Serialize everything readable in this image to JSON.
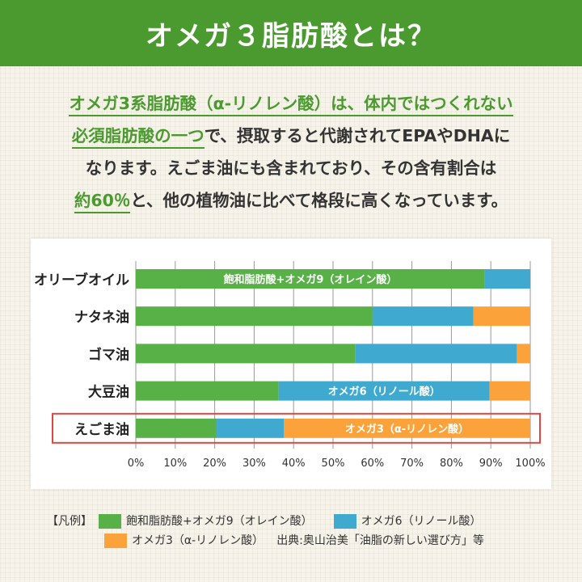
{
  "header": {
    "title": "オメガ３脂肪酸とは？"
  },
  "intro": {
    "l1_hl": "オメガ3系脂肪酸（α-リノレン酸）は、体内ではつくれない",
    "l2_hl": "必須脂肪酸の一つ",
    "l2_rest": "で、摂取すると代謝されてEPAやDHAに",
    "l3": "なります。えごま油にも含まれており、その含有割合は",
    "l4_hl": "約60％",
    "l4_rest": "と、他の植物油に比べて格段に高くなっています。"
  },
  "chart_data": {
    "type": "bar",
    "orientation": "horizontal",
    "stacked": true,
    "categories": [
      "オリーブオイル",
      "ナタネ油",
      "ゴマ油",
      "大豆油",
      "えごま油"
    ],
    "series": [
      {
        "name": "飽和脂肪酸+オメガ9（オレイン酸）",
        "color": "#58b146",
        "values": [
          88.5,
          60,
          55.6,
          36.2,
          20.5
        ]
      },
      {
        "name": "オメガ6（リノール酸）",
        "color": "#3fa9cf",
        "values": [
          11.5,
          25.6,
          41,
          53.5,
          17
        ]
      },
      {
        "name": "オメガ3（α-リノレン酸）",
        "color": "#fba33a",
        "values": [
          0,
          14.4,
          3.4,
          10.3,
          62.5
        ]
      }
    ],
    "bar_labels": [
      {
        "category": "オリーブオイル",
        "series": 0,
        "text": "飽和脂肪酸+オメガ9（オレイン酸）"
      },
      {
        "category": "大豆油",
        "series": 1,
        "text": "オメガ6（リノール酸）"
      },
      {
        "category": "えごま油",
        "series": 2,
        "text": "オメガ3（α-リノレン酸）"
      }
    ],
    "highlight_category": "えごま油",
    "highlight_color": "#e0463e",
    "xlim": [
      0,
      100
    ],
    "xticks": [
      "0%",
      "10%",
      "20%",
      "30%",
      "40%",
      "50%",
      "60%",
      "70%",
      "80%",
      "90%",
      "100%"
    ],
    "grid": true,
    "legend": "bottom"
  },
  "legend": {
    "prefix": "【凡例】",
    "items": [
      "飽和脂肪酸+オメガ9（オレイン酸）",
      "オメガ6（リノール酸）",
      "オメガ3（α-リノレン酸）"
    ],
    "source": "出典:奥山治美「油脂の新しい選び方」等"
  }
}
